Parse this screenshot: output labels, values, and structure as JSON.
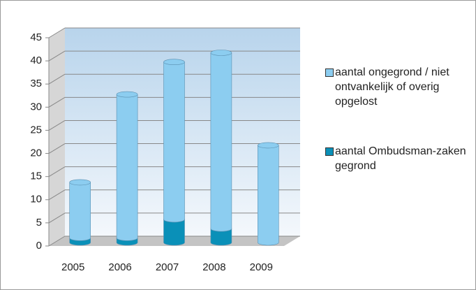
{
  "chart_data": {
    "type": "bar",
    "stacked": true,
    "categories": [
      "2005",
      "2006",
      "2007",
      "2008",
      "2009"
    ],
    "series": [
      {
        "name": "aantal Ombudsman-zaken gegrond",
        "color": "#0a90b8",
        "values": [
          1,
          1,
          5,
          3,
          0
        ]
      },
      {
        "name": "aantal ongegrond / niet ontvankelijk of overig opgelost",
        "color": "#8ccdf0",
        "values": [
          12,
          31,
          34,
          38,
          21
        ]
      }
    ],
    "ylim": [
      0,
      45
    ],
    "yticks": [
      0,
      5,
      10,
      15,
      20,
      25,
      30,
      35,
      40,
      45
    ],
    "grid": true
  }
}
